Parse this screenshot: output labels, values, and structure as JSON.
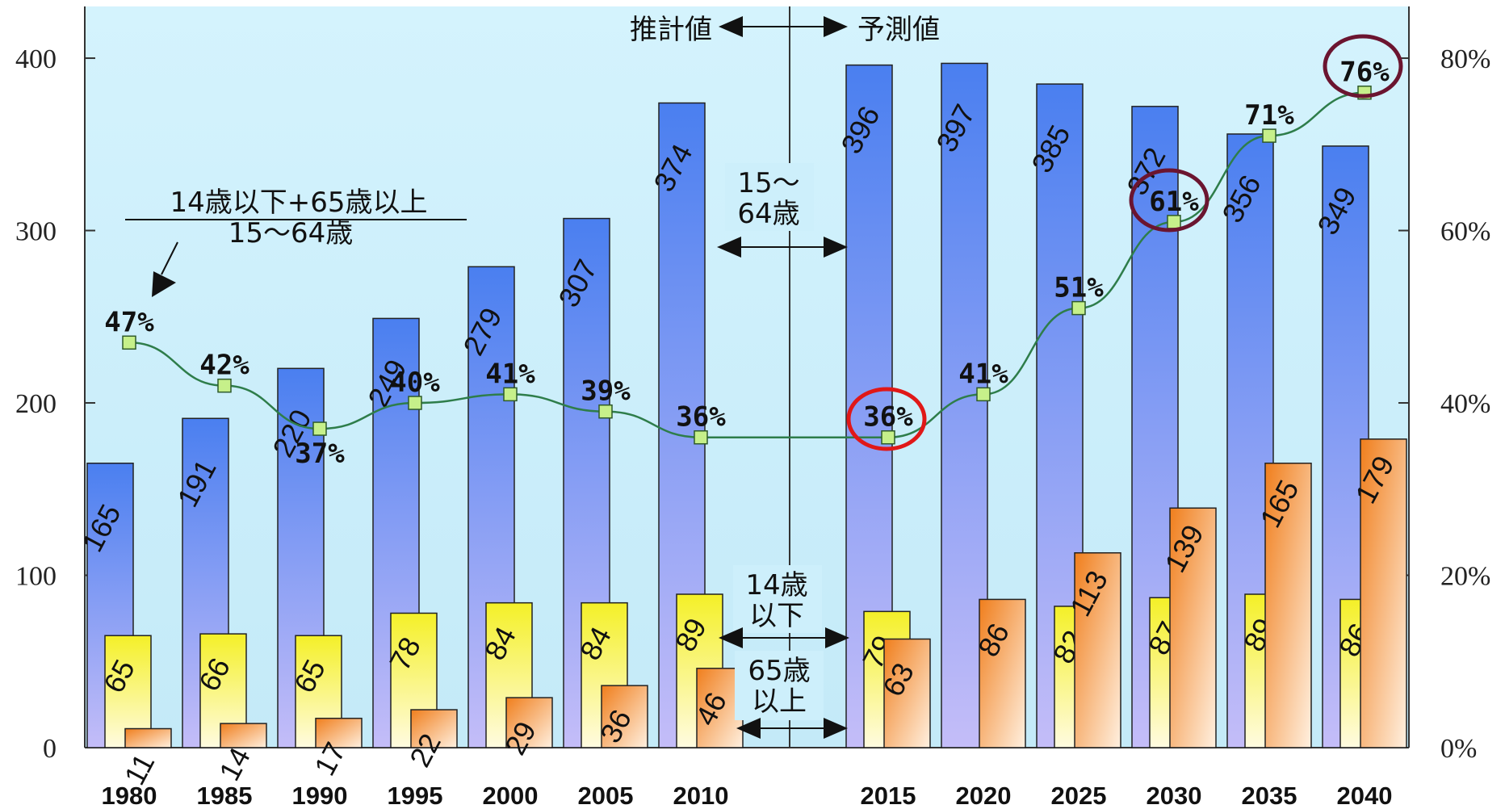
{
  "chart_data": {
    "type": "bar",
    "categories": [
      "1980",
      "1985",
      "1990",
      "1995",
      "2000",
      "2005",
      "2010",
      "2015",
      "2020",
      "2025",
      "2030",
      "2035",
      "2040"
    ],
    "series": [
      {
        "type": "bar",
        "values": [
          165,
          191,
          220,
          249,
          279,
          307,
          374,
          396,
          397,
          385,
          372,
          356,
          349
        ],
        "color": "#4a7ff0"
      },
      {
        "type": "bar",
        "values": [
          65,
          66,
          65,
          78,
          84,
          84,
          89,
          79,
          null,
          82,
          87,
          89,
          86
        ],
        "color": "#f2ee36"
      },
      {
        "type": "bar",
        "values": [
          11,
          14,
          17,
          22,
          29,
          36,
          46,
          63,
          86,
          113,
          139,
          165,
          179
        ],
        "color": "#f08c2a"
      },
      {
        "type": "line",
        "axis": "right",
        "values": [
          47,
          42,
          37,
          40,
          41,
          39,
          36,
          36,
          41,
          51,
          61,
          71,
          76
        ],
        "labels": [
          "47%",
          "42%",
          "37%",
          "40%",
          "41%",
          "39%",
          "36%",
          "36%",
          "41%",
          "51%",
          "61%",
          "71%",
          "76%"
        ],
        "color": "#2e7d4a"
      }
    ],
    "left_axis": {
      "ylim": [
        0,
        430
      ],
      "ticks": [
        "0",
        "100",
        "200",
        "300",
        "400"
      ]
    },
    "right_axis": {
      "ylim": [
        0,
        86
      ],
      "ticks": [
        "0%",
        "20%",
        "40%",
        "60%",
        "80%"
      ]
    },
    "highlighted": [
      "2015",
      "2030",
      "2040"
    ],
    "annotations": {
      "estimate": "推計値",
      "forecast": "予測値",
      "ratio_numerator": "14歳以下+65歳以上",
      "ratio_denominator": "15～64歳",
      "legend_15_64_line1": "15～",
      "legend_15_64_line2": "64歳",
      "legend_0_14_line1": "14歳",
      "legend_0_14_line2": "以下",
      "legend_65_line1": "65歳",
      "legend_65_line2": "以上"
    },
    "grid": false
  },
  "colors": {
    "plot_bg": "#cdeffb",
    "bar_blue_top": "#4a7ff0",
    "bar_blue_bottom": "#c4bdf8",
    "bar_yellow_top": "#f4f028",
    "bar_yellow_bottom": "#fffbe0",
    "bar_orange_top": "#f07e1c",
    "bar_orange_bottom": "#fff0e0",
    "line": "#2e7d4a",
    "marker": "#c6f08a",
    "circle_red": "#e01818",
    "circle_dark": "#6b1530"
  }
}
